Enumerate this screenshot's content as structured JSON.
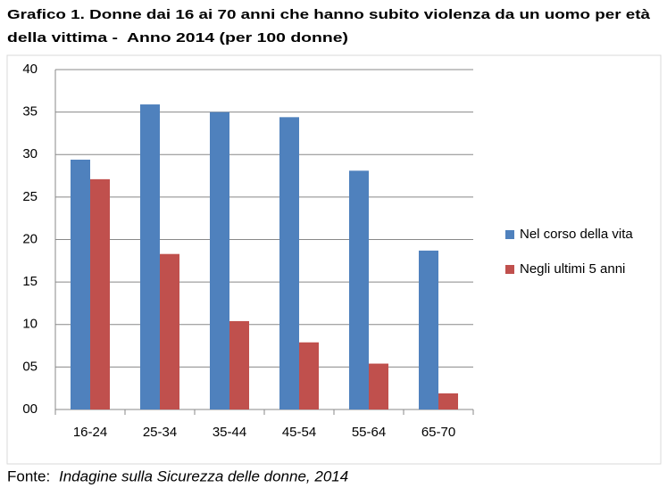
{
  "chart_data": {
    "type": "bar",
    "title": [
      "Grafico 1. Donne dai 16 ai 70 anni che hanno subito violenza da un uomo per età",
      "della vittima -  Anno 2014 (per 100 donne)"
    ],
    "categories": [
      "16-24",
      "25-34",
      "35-44",
      "45-54",
      "55-64",
      "65-70"
    ],
    "series": [
      {
        "name": "Nel corso della vita",
        "color": "#4f81bd",
        "values": [
          29.4,
          35.9,
          35.0,
          34.4,
          28.1,
          18.7
        ]
      },
      {
        "name": "Negli ultimi 5 anni",
        "color": "#c0504d",
        "values": [
          27.1,
          18.3,
          10.4,
          7.9,
          5.4,
          1.9
        ]
      }
    ],
    "ylim": [
      0,
      40
    ],
    "yticks": [
      {
        "value": 0,
        "label": "00"
      },
      {
        "value": 5,
        "label": "05"
      },
      10,
      15,
      20,
      25,
      30,
      35,
      40
    ],
    "grid": true,
    "legend": "right",
    "source_label": "Fonte:",
    "source": "Indagine sulla Sicurezza delle donne, 2014"
  }
}
